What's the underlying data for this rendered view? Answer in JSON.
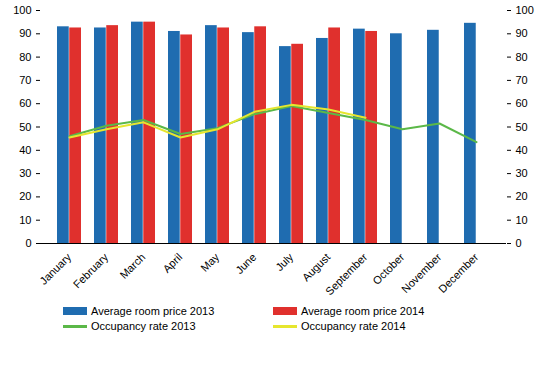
{
  "chart_data": {
    "type": "bar",
    "categories": [
      "January",
      "February",
      "March",
      "April",
      "May",
      "June",
      "July",
      "August",
      "September",
      "October",
      "November",
      "December"
    ],
    "series": [
      {
        "name": "Average room price 2013",
        "type": "bar",
        "color": "#1f6cb0",
        "values": [
          93,
          92.5,
          95,
          91,
          93.5,
          90.5,
          84.5,
          88,
          92,
          90,
          91.5,
          94.5
        ]
      },
      {
        "name": "Average room price 2014",
        "type": "bar",
        "color": "#e0302d",
        "values": [
          92.5,
          93.5,
          95,
          89.5,
          92.5,
          93,
          85.5,
          92.5,
          91,
          null,
          null,
          null
        ]
      },
      {
        "name": "Occupancy rate 2013",
        "type": "line",
        "color": "#5bb848",
        "values": [
          46,
          50.5,
          53,
          47,
          49.5,
          55.5,
          59,
          56,
          53,
          49,
          51.5,
          43.5
        ]
      },
      {
        "name": "Occupancy rate 2014",
        "type": "line",
        "color": "#e6e62e",
        "values": [
          45.5,
          49,
          52,
          45.5,
          49,
          56.5,
          59.5,
          57.5,
          54,
          null,
          null,
          null
        ]
      }
    ],
    "ylim": [
      0,
      100
    ],
    "yticks": [
      0,
      10,
      20,
      30,
      40,
      50,
      60,
      70,
      80,
      90,
      100
    ],
    "grid": false,
    "legend": "bottom"
  }
}
